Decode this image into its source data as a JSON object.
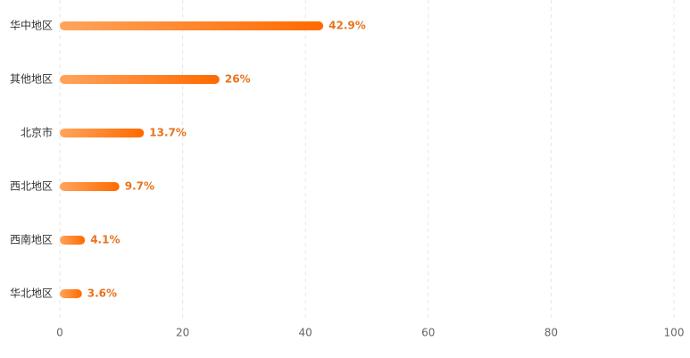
{
  "chart_data": {
    "type": "bar",
    "orientation": "horizontal",
    "categories": [
      "华中地区",
      "其他地区",
      "北京市",
      "西北地区",
      "西南地区",
      "华北地区"
    ],
    "values": [
      42.9,
      26,
      13.7,
      9.7,
      4.1,
      3.6
    ],
    "value_labels": [
      "42.9%",
      "26%",
      "13.7%",
      "9.7%",
      "4.1%",
      "3.6%"
    ],
    "color": "#ff6a00",
    "xlim": [
      0,
      100
    ],
    "xticks": [
      0,
      20,
      40,
      60,
      80,
      100
    ],
    "grid": true
  }
}
